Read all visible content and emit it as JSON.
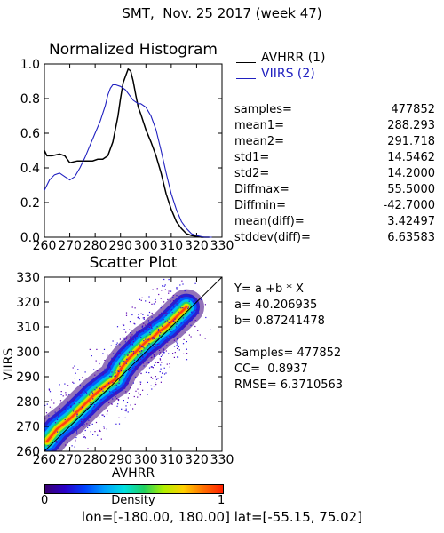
{
  "header": {
    "title": "SMT,  Nov. 25 2017 (week 47)"
  },
  "histogram": {
    "title": "Normalized Histogram",
    "legend": [
      {
        "label": "AVHRR (1)",
        "color": "#000000"
      },
      {
        "label": "VIIRS (2)",
        "color": "#2020c0"
      }
    ],
    "stats": [
      {
        "label": "samples=",
        "value": "477852"
      },
      {
        "label": "mean1=",
        "value": "288.293"
      },
      {
        "label": "mean2=",
        "value": "291.718"
      },
      {
        "label": "std1=",
        "value": "14.5462"
      },
      {
        "label": "std2=",
        "value": "14.2000"
      },
      {
        "label": "Diffmax=",
        "value": "55.5000"
      },
      {
        "label": "Diffmin=",
        "value": "-42.7000"
      },
      {
        "label": "mean(diff)=",
        "value": "3.42497"
      },
      {
        "label": "stddev(diff)=",
        "value": "6.63583"
      }
    ]
  },
  "scatter": {
    "title": "Scatter Plot",
    "fit": [
      "Y= a +b * X",
      "a= 40.206935",
      "b= 0.87241478",
      "",
      "Samples= 477852",
      "CC=  0.8937",
      "RMSE= 6.3710563"
    ]
  },
  "colorbar": {
    "label": "Density",
    "min": "0",
    "max": "1"
  },
  "footer": {
    "text": "lon=[-180.00, 180.00] lat=[-55.15, 75.02]"
  },
  "chart_data": [
    {
      "type": "line",
      "title": "Normalized Histogram",
      "xlim": [
        260,
        330
      ],
      "ylim": [
        0.0,
        1.0
      ],
      "xticks": [
        "260",
        "270",
        "280",
        "290",
        "300",
        "310",
        "320",
        "330"
      ],
      "yticks": [
        "0.0",
        "0.2",
        "0.4",
        "0.6",
        "0.8",
        "1.0"
      ],
      "series": [
        {
          "name": "AVHRR (1)",
          "color": "#000000",
          "x": [
            260,
            261,
            263,
            266,
            268,
            270,
            273,
            276,
            279,
            281,
            283,
            285,
            287,
            289,
            290,
            291,
            292,
            293,
            294,
            295,
            296,
            297,
            298,
            300,
            302,
            304,
            306,
            308,
            310,
            312,
            314,
            316,
            318,
            320,
            322,
            325
          ],
          "y": [
            0.5,
            0.47,
            0.47,
            0.48,
            0.47,
            0.43,
            0.44,
            0.44,
            0.44,
            0.45,
            0.45,
            0.47,
            0.55,
            0.7,
            0.8,
            0.89,
            0.93,
            0.97,
            0.96,
            0.9,
            0.82,
            0.75,
            0.71,
            0.62,
            0.55,
            0.47,
            0.37,
            0.25,
            0.16,
            0.09,
            0.05,
            0.02,
            0.01,
            0.005,
            0.0,
            0.0
          ]
        },
        {
          "name": "VIIRS (2)",
          "color": "#2020c0",
          "x": [
            260,
            262,
            264,
            266,
            268,
            270,
            272,
            274,
            276,
            278,
            280,
            282,
            284,
            285,
            286,
            287,
            288,
            290,
            292,
            293,
            294,
            295,
            296,
            297,
            298,
            300,
            302,
            304,
            306,
            308,
            310,
            312,
            314,
            316,
            318,
            320,
            323,
            326
          ],
          "y": [
            0.27,
            0.33,
            0.36,
            0.37,
            0.35,
            0.33,
            0.35,
            0.4,
            0.46,
            0.53,
            0.6,
            0.67,
            0.76,
            0.82,
            0.86,
            0.88,
            0.88,
            0.87,
            0.85,
            0.83,
            0.81,
            0.79,
            0.78,
            0.77,
            0.77,
            0.75,
            0.7,
            0.62,
            0.5,
            0.37,
            0.25,
            0.16,
            0.09,
            0.05,
            0.02,
            0.01,
            0.0,
            0.0
          ]
        }
      ]
    },
    {
      "type": "scatter",
      "title": "Scatter Plot",
      "xlabel": "AVHRR",
      "ylabel": "VIIRS",
      "xlim": [
        260,
        330
      ],
      "ylim": [
        260,
        330
      ],
      "xticks": [
        "260",
        "270",
        "280",
        "290",
        "300",
        "310",
        "320",
        "330"
      ],
      "yticks": [
        "260",
        "270",
        "280",
        "290",
        "300",
        "310",
        "320",
        "330"
      ],
      "reference_line": {
        "x": [
          260,
          330
        ],
        "y": [
          260,
          330
        ]
      },
      "density_ridge": [
        {
          "x": 261,
          "y": 264
        },
        {
          "x": 265,
          "y": 269
        },
        {
          "x": 270,
          "y": 273
        },
        {
          "x": 275,
          "y": 278
        },
        {
          "x": 280,
          "y": 283
        },
        {
          "x": 285,
          "y": 287
        },
        {
          "x": 288,
          "y": 289
        },
        {
          "x": 290,
          "y": 293
        },
        {
          "x": 293,
          "y": 297
        },
        {
          "x": 295,
          "y": 299
        },
        {
          "x": 298,
          "y": 302
        },
        {
          "x": 300,
          "y": 304
        },
        {
          "x": 303,
          "y": 306
        },
        {
          "x": 305,
          "y": 308
        },
        {
          "x": 308,
          "y": 310
        },
        {
          "x": 310,
          "y": 312
        },
        {
          "x": 313,
          "y": 315
        },
        {
          "x": 316,
          "y": 318
        }
      ]
    }
  ]
}
